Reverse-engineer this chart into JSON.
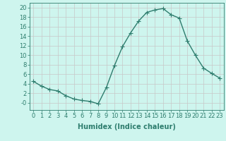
{
  "x": [
    0,
    1,
    2,
    3,
    4,
    5,
    6,
    7,
    8,
    9,
    10,
    11,
    12,
    13,
    14,
    15,
    16,
    17,
    18,
    19,
    20,
    21,
    22,
    23
  ],
  "y": [
    4.5,
    3.5,
    2.8,
    2.5,
    1.5,
    0.8,
    0.5,
    0.3,
    -0.2,
    3.2,
    7.8,
    11.8,
    14.7,
    17.2,
    19.0,
    19.5,
    19.8,
    18.5,
    17.8,
    13.0,
    10.0,
    7.3,
    6.2,
    5.2
  ],
  "line_color": "#2e7d6e",
  "marker": "+",
  "marker_size": 4.0,
  "line_width": 1.0,
  "bg_color": "#cef5ee",
  "grid_color": "#c8c8c8",
  "xlabel": "Humidex (Indice chaleur)",
  "xlabel_fontsize": 7.0,
  "tick_fontsize": 6.0,
  "ylim": [
    -1.5,
    21
  ],
  "xlim": [
    -0.5,
    23.5
  ],
  "yticks": [
    0,
    2,
    4,
    6,
    8,
    10,
    12,
    14,
    16,
    18,
    20
  ],
  "ytick_labels": [
    "-0",
    "2",
    "4",
    "6",
    "8",
    "10",
    "12",
    "14",
    "16",
    "18",
    "20"
  ],
  "xticks": [
    0,
    1,
    2,
    3,
    4,
    5,
    6,
    7,
    8,
    9,
    10,
    11,
    12,
    13,
    14,
    15,
    16,
    17,
    18,
    19,
    20,
    21,
    22,
    23
  ]
}
